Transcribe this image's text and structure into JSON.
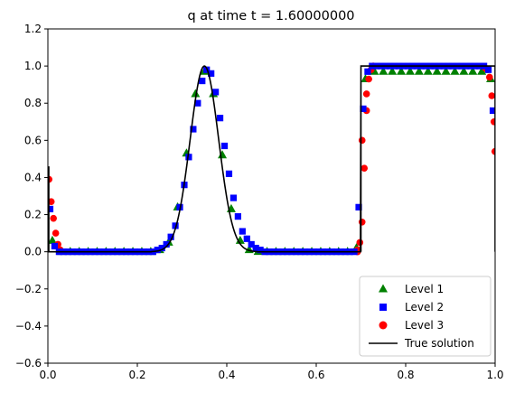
{
  "chart_data": {
    "type": "scatter",
    "title": "q at time t =     1.60000000",
    "xlabel": "",
    "ylabel": "",
    "xlim": [
      0,
      1
    ],
    "ylim": [
      -0.6,
      1.2
    ],
    "x_ticks": [
      "0.0",
      "0.2",
      "0.4",
      "0.6",
      "0.8",
      "1.0"
    ],
    "y_ticks": [
      "−0.6",
      "−0.4",
      "−0.2",
      "0.0",
      "0.2",
      "0.4",
      "0.6",
      "0.8",
      "1.0",
      "1.2"
    ],
    "grid": false,
    "legend_position": "bottom-right",
    "series": [
      {
        "name": "Level 1",
        "marker": "triangle",
        "color": "#008000",
        "points": [
          [
            0.01,
            0.06
          ],
          [
            0.03,
            0.0
          ],
          [
            0.05,
            0.0
          ],
          [
            0.07,
            0.0
          ],
          [
            0.09,
            0.0
          ],
          [
            0.11,
            0.0
          ],
          [
            0.13,
            0.0
          ],
          [
            0.15,
            0.0
          ],
          [
            0.17,
            0.0
          ],
          [
            0.19,
            0.0
          ],
          [
            0.21,
            0.0
          ],
          [
            0.23,
            0.0
          ],
          [
            0.25,
            0.01
          ],
          [
            0.27,
            0.05
          ],
          [
            0.29,
            0.24
          ],
          [
            0.31,
            0.53
          ],
          [
            0.33,
            0.85
          ],
          [
            0.35,
            0.97
          ],
          [
            0.37,
            0.85
          ],
          [
            0.39,
            0.52
          ],
          [
            0.41,
            0.23
          ],
          [
            0.43,
            0.06
          ],
          [
            0.45,
            0.01
          ],
          [
            0.47,
            0.0
          ],
          [
            0.49,
            0.0
          ],
          [
            0.51,
            0.0
          ],
          [
            0.53,
            0.0
          ],
          [
            0.55,
            0.0
          ],
          [
            0.57,
            0.0
          ],
          [
            0.59,
            0.0
          ],
          [
            0.61,
            0.0
          ],
          [
            0.63,
            0.0
          ],
          [
            0.65,
            0.0
          ],
          [
            0.67,
            0.0
          ],
          [
            0.69,
            0.02
          ],
          [
            0.71,
            0.93
          ],
          [
            0.73,
            0.97
          ],
          [
            0.75,
            0.97
          ],
          [
            0.77,
            0.97
          ],
          [
            0.79,
            0.97
          ],
          [
            0.81,
            0.97
          ],
          [
            0.83,
            0.97
          ],
          [
            0.85,
            0.97
          ],
          [
            0.87,
            0.97
          ],
          [
            0.89,
            0.97
          ],
          [
            0.91,
            0.97
          ],
          [
            0.93,
            0.97
          ],
          [
            0.95,
            0.97
          ],
          [
            0.97,
            0.97
          ],
          [
            0.99,
            0.93
          ]
        ]
      },
      {
        "name": "Level 2",
        "marker": "square",
        "color": "#0000ff",
        "points": [
          [
            0.005,
            0.23
          ],
          [
            0.015,
            0.03
          ],
          [
            0.025,
            0.0
          ],
          [
            0.035,
            0.0
          ],
          [
            0.045,
            0.0
          ],
          [
            0.055,
            0.0
          ],
          [
            0.065,
            0.0
          ],
          [
            0.075,
            0.0
          ],
          [
            0.085,
            0.0
          ],
          [
            0.095,
            0.0
          ],
          [
            0.105,
            0.0
          ],
          [
            0.115,
            0.0
          ],
          [
            0.125,
            0.0
          ],
          [
            0.135,
            0.0
          ],
          [
            0.145,
            0.0
          ],
          [
            0.155,
            0.0
          ],
          [
            0.165,
            0.0
          ],
          [
            0.175,
            0.0
          ],
          [
            0.185,
            0.0
          ],
          [
            0.195,
            0.0
          ],
          [
            0.205,
            0.0
          ],
          [
            0.215,
            0.0
          ],
          [
            0.225,
            0.0
          ],
          [
            0.235,
            0.0
          ],
          [
            0.245,
            0.01
          ],
          [
            0.255,
            0.02
          ],
          [
            0.265,
            0.04
          ],
          [
            0.275,
            0.08
          ],
          [
            0.285,
            0.14
          ],
          [
            0.295,
            0.24
          ],
          [
            0.305,
            0.36
          ],
          [
            0.315,
            0.51
          ],
          [
            0.325,
            0.66
          ],
          [
            0.335,
            0.8
          ],
          [
            0.345,
            0.92
          ],
          [
            0.355,
            0.98
          ],
          [
            0.365,
            0.96
          ],
          [
            0.375,
            0.86
          ],
          [
            0.385,
            0.72
          ],
          [
            0.395,
            0.57
          ],
          [
            0.405,
            0.42
          ],
          [
            0.415,
            0.29
          ],
          [
            0.425,
            0.19
          ],
          [
            0.435,
            0.11
          ],
          [
            0.445,
            0.07
          ],
          [
            0.455,
            0.04
          ],
          [
            0.465,
            0.02
          ],
          [
            0.475,
            0.01
          ],
          [
            0.485,
            0.0
          ],
          [
            0.495,
            0.0
          ],
          [
            0.505,
            0.0
          ],
          [
            0.515,
            0.0
          ],
          [
            0.525,
            0.0
          ],
          [
            0.535,
            0.0
          ],
          [
            0.545,
            0.0
          ],
          [
            0.555,
            0.0
          ],
          [
            0.565,
            0.0
          ],
          [
            0.575,
            0.0
          ],
          [
            0.585,
            0.0
          ],
          [
            0.595,
            0.0
          ],
          [
            0.605,
            0.0
          ],
          [
            0.615,
            0.0
          ],
          [
            0.625,
            0.0
          ],
          [
            0.635,
            0.0
          ],
          [
            0.645,
            0.0
          ],
          [
            0.655,
            0.0
          ],
          [
            0.665,
            0.0
          ],
          [
            0.675,
            0.0
          ],
          [
            0.685,
            0.0
          ],
          [
            0.695,
            0.24
          ],
          [
            0.705,
            0.77
          ],
          [
            0.715,
            0.97
          ],
          [
            0.725,
            1.0
          ],
          [
            0.735,
            1.0
          ],
          [
            0.745,
            1.0
          ],
          [
            0.755,
            1.0
          ],
          [
            0.765,
            1.0
          ],
          [
            0.775,
            1.0
          ],
          [
            0.785,
            1.0
          ],
          [
            0.795,
            1.0
          ],
          [
            0.805,
            1.0
          ],
          [
            0.815,
            1.0
          ],
          [
            0.825,
            1.0
          ],
          [
            0.835,
            1.0
          ],
          [
            0.845,
            1.0
          ],
          [
            0.855,
            1.0
          ],
          [
            0.865,
            1.0
          ],
          [
            0.875,
            1.0
          ],
          [
            0.885,
            1.0
          ],
          [
            0.895,
            1.0
          ],
          [
            0.905,
            1.0
          ],
          [
            0.915,
            1.0
          ],
          [
            0.925,
            1.0
          ],
          [
            0.935,
            1.0
          ],
          [
            0.945,
            1.0
          ],
          [
            0.955,
            1.0
          ],
          [
            0.965,
            1.0
          ],
          [
            0.975,
            1.0
          ],
          [
            0.985,
            0.98
          ],
          [
            0.995,
            0.76
          ]
        ]
      },
      {
        "name": "Level 3",
        "marker": "circle",
        "color": "#ff0000",
        "points": [
          [
            0.0025,
            0.39
          ],
          [
            0.0075,
            0.27
          ],
          [
            0.0125,
            0.18
          ],
          [
            0.0175,
            0.1
          ],
          [
            0.0225,
            0.04
          ],
          [
            0.0275,
            0.01
          ],
          [
            0.6925,
            0.01
          ],
          [
            0.6975,
            0.05
          ],
          [
            0.7025,
            0.16
          ],
          [
            0.7075,
            0.45
          ],
          [
            0.7125,
            0.76
          ],
          [
            0.7175,
            0.93
          ],
          [
            0.7225,
            0.98
          ],
          [
            0.7275,
            1.0
          ],
          [
            0.9775,
            0.99
          ],
          [
            0.9825,
            0.98
          ],
          [
            0.9875,
            0.94
          ],
          [
            0.9925,
            0.84
          ],
          [
            0.9975,
            0.7
          ],
          [
            0.9995,
            0.54
          ],
          [
            0.6925,
            0.0
          ],
          [
            0.7025,
            0.6
          ],
          [
            0.7125,
            0.85
          ]
        ]
      },
      {
        "name": "True solution",
        "marker": "line",
        "color": "#000000",
        "points": []
      }
    ]
  }
}
